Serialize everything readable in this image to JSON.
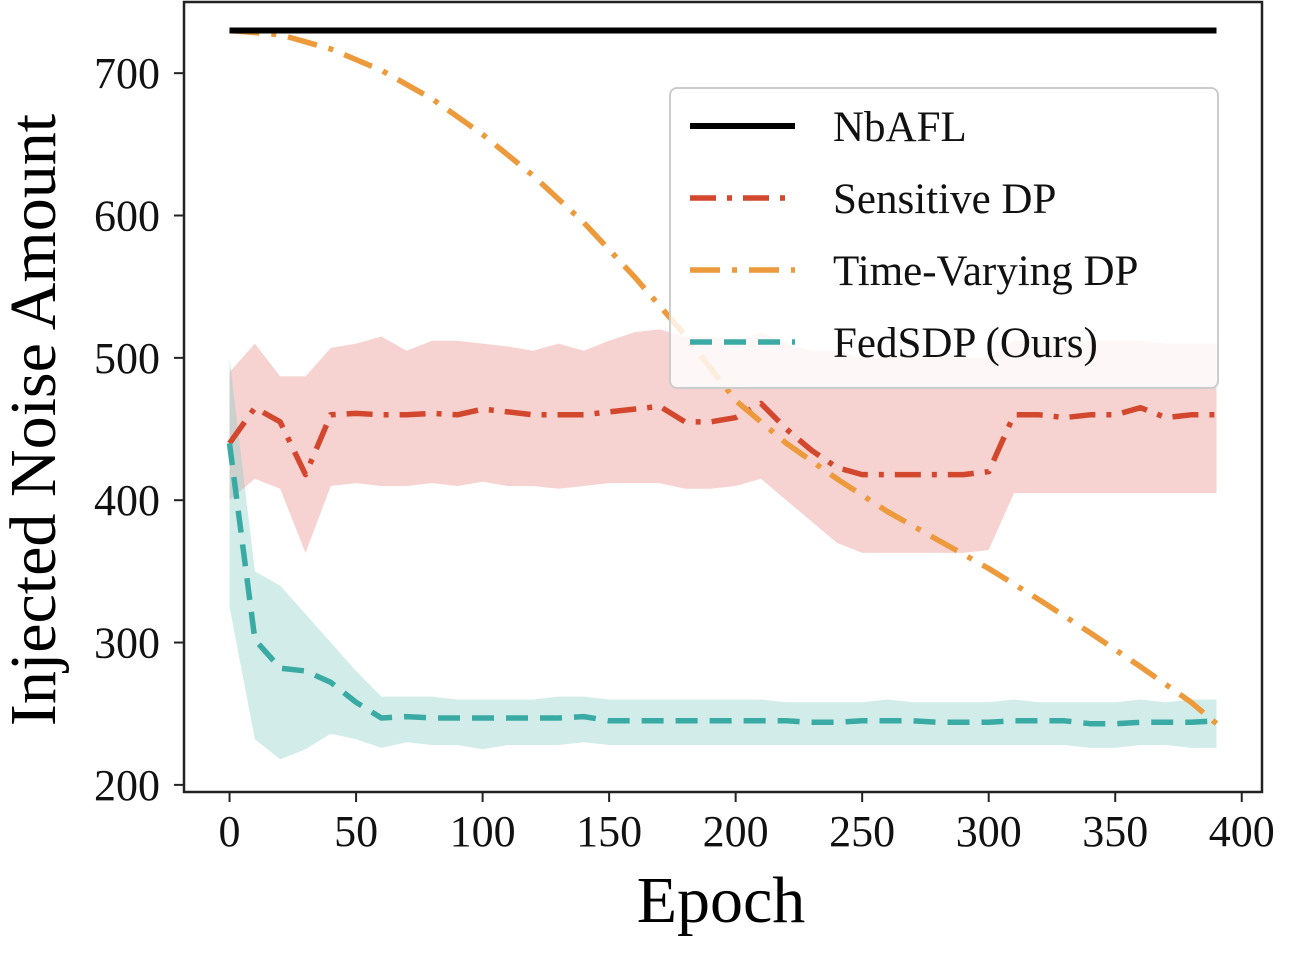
{
  "chart_data": {
    "type": "line",
    "title": "",
    "xlabel": "Epoch",
    "ylabel": "Injected Noise Amount",
    "xlim": [
      -18,
      408
    ],
    "ylim": [
      195,
      750
    ],
    "xticks": [
      0,
      50,
      100,
      150,
      200,
      250,
      300,
      350,
      400
    ],
    "yticks": [
      200,
      300,
      400,
      500,
      600,
      700
    ],
    "grid": false,
    "legend_position": "upper-right",
    "series": [
      {
        "name": "NbAFL",
        "color": "#000000",
        "style": "solid",
        "x": [
          0,
          390
        ],
        "values": [
          730,
          730
        ]
      },
      {
        "name": "Sensitive DP",
        "color": "#d2472d",
        "style": "dashdot",
        "band_color": "#e8908a",
        "x": [
          0,
          10,
          20,
          30,
          40,
          50,
          60,
          70,
          80,
          90,
          100,
          110,
          120,
          130,
          140,
          150,
          160,
          170,
          180,
          190,
          200,
          210,
          220,
          230,
          240,
          250,
          260,
          270,
          280,
          290,
          300,
          310,
          320,
          330,
          340,
          350,
          360,
          370,
          380,
          390
        ],
        "values": [
          440,
          465,
          455,
          418,
          460,
          461,
          460,
          460,
          461,
          460,
          464,
          462,
          460,
          460,
          460,
          462,
          464,
          466,
          455,
          455,
          458,
          468,
          450,
          435,
          423,
          418,
          418,
          418,
          418,
          418,
          420,
          460,
          460,
          458,
          460,
          460,
          465,
          458,
          460,
          460
        ],
        "upper": [
          490,
          510,
          487,
          487,
          507,
          510,
          515,
          505,
          512,
          512,
          510,
          508,
          505,
          510,
          505,
          512,
          518,
          520,
          515,
          515,
          512,
          518,
          510,
          505,
          505,
          500,
          500,
          500,
          500,
          500,
          500,
          512,
          512,
          510,
          512,
          512,
          512,
          510,
          510,
          510
        ],
        "lower": [
          400,
          415,
          408,
          363,
          410,
          412,
          410,
          410,
          412,
          410,
          413,
          410,
          410,
          408,
          410,
          412,
          412,
          412,
          408,
          408,
          410,
          415,
          400,
          385,
          370,
          363,
          363,
          363,
          363,
          363,
          365,
          405,
          405,
          405,
          405,
          405,
          405,
          405,
          405,
          405
        ]
      },
      {
        "name": "Time-Varying DP",
        "color": "#ec9a3c",
        "style": "dashdot-long",
        "x": [
          0,
          20,
          40,
          60,
          80,
          100,
          120,
          140,
          160,
          180,
          200,
          220,
          240,
          260,
          280,
          300,
          320,
          340,
          360,
          380,
          390
        ],
        "values": [
          730,
          727,
          717,
          702,
          682,
          657,
          628,
          595,
          557,
          516,
          470,
          440,
          415,
          392,
          372,
          352,
          330,
          307,
          283,
          258,
          243
        ]
      },
      {
        "name": "FedSDP (Ours)",
        "color": "#3aaba4",
        "style": "dashed",
        "band_color": "#8fd0c8",
        "x": [
          0,
          10,
          20,
          30,
          40,
          50,
          60,
          70,
          80,
          90,
          100,
          110,
          120,
          130,
          140,
          150,
          160,
          170,
          180,
          190,
          200,
          210,
          220,
          230,
          240,
          250,
          260,
          270,
          280,
          290,
          300,
          310,
          320,
          330,
          340,
          350,
          360,
          370,
          380,
          390
        ],
        "values": [
          440,
          302,
          282,
          280,
          272,
          258,
          247,
          248,
          247,
          247,
          247,
          247,
          247,
          247,
          248,
          245,
          245,
          245,
          245,
          245,
          245,
          245,
          245,
          244,
          244,
          245,
          245,
          245,
          244,
          244,
          244,
          245,
          245,
          245,
          243,
          243,
          244,
          244,
          244,
          245
        ],
        "upper": [
          500,
          350,
          340,
          320,
          300,
          280,
          262,
          262,
          262,
          260,
          260,
          260,
          260,
          262,
          262,
          260,
          260,
          260,
          260,
          260,
          260,
          260,
          258,
          258,
          258,
          258,
          260,
          258,
          258,
          258,
          258,
          260,
          258,
          258,
          258,
          258,
          260,
          258,
          260,
          260
        ],
        "lower": [
          325,
          232,
          218,
          225,
          236,
          232,
          226,
          230,
          228,
          228,
          225,
          228,
          228,
          228,
          230,
          228,
          228,
          228,
          228,
          228,
          228,
          228,
          228,
          228,
          228,
          228,
          228,
          228,
          228,
          228,
          228,
          228,
          228,
          228,
          226,
          226,
          228,
          228,
          226,
          226
        ]
      }
    ]
  }
}
